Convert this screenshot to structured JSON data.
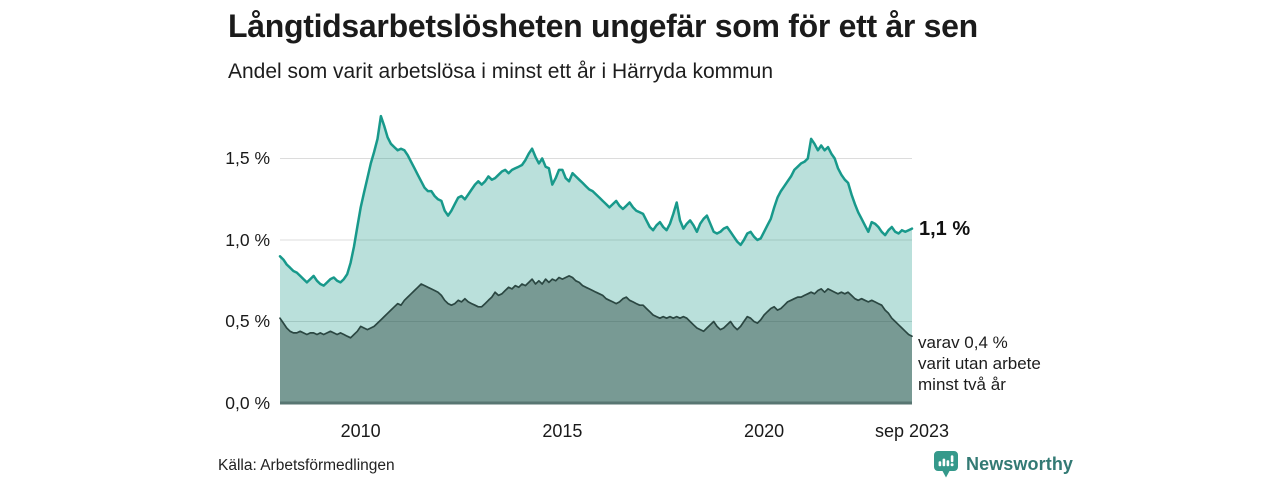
{
  "header": {
    "title": "Långtidsarbetslösheten ungefär som för ett år sen",
    "subtitle": "Andel som varit arbetslösa i minst ett år i Härryda kommun"
  },
  "annotations": {
    "latest_value": "1,1 %",
    "note_lines": [
      "varav 0,4 %",
      "varit utan arbete",
      "minst två år"
    ]
  },
  "footer": {
    "source": "Källa: Arbetsförmedlingen",
    "brand_name": "Newsworthy",
    "brand_icon_color": "#35998b",
    "brand_text_color": "#337a74"
  },
  "chart_data": {
    "type": "area",
    "title": "Långtidsarbetslösheten ungefär som för ett år sen",
    "subtitle": "Andel som varit arbetslösa i minst ett år i Härryda kommun",
    "unit": "%",
    "frequency": "monthly",
    "x_start": "2008-01",
    "x_end": "2023-09",
    "ylim": [
      0,
      1.8
    ],
    "grid": true,
    "grid_color": "#dcdcdc",
    "axis_color": "#587672",
    "yticks": [
      {
        "value": 1.5,
        "label": "1,5 %"
      },
      {
        "value": 1.0,
        "label": "1,0 %"
      },
      {
        "value": 0.5,
        "label": "0,5 %"
      },
      {
        "value": 0.0,
        "label": "0,0 %"
      }
    ],
    "xticks": [
      {
        "t": 2010,
        "label": "2010"
      },
      {
        "t": 2015,
        "label": "2015"
      },
      {
        "t": 2020,
        "label": "2020"
      },
      {
        "t": 2023.6667,
        "label": "sep 2023"
      }
    ],
    "series": [
      {
        "name": "Andel arbetslösa minst ett år",
        "end_label": "1,1 %",
        "end_value": 1.1,
        "line_color": "#18998b",
        "fill_color": "rgba(26,153,137,0.30)",
        "line_width": 2.5,
        "values": [
          0.9,
          0.88,
          0.85,
          0.83,
          0.81,
          0.8,
          0.78,
          0.76,
          0.74,
          0.76,
          0.78,
          0.75,
          0.73,
          0.72,
          0.74,
          0.76,
          0.77,
          0.75,
          0.74,
          0.76,
          0.79,
          0.86,
          0.96,
          1.08,
          1.2,
          1.29,
          1.38,
          1.47,
          1.54,
          1.62,
          1.76,
          1.7,
          1.63,
          1.59,
          1.57,
          1.55,
          1.56,
          1.55,
          1.52,
          1.48,
          1.44,
          1.4,
          1.36,
          1.32,
          1.3,
          1.3,
          1.27,
          1.25,
          1.24,
          1.18,
          1.15,
          1.18,
          1.22,
          1.26,
          1.27,
          1.25,
          1.28,
          1.31,
          1.34,
          1.36,
          1.34,
          1.36,
          1.39,
          1.37,
          1.38,
          1.4,
          1.42,
          1.43,
          1.41,
          1.43,
          1.44,
          1.45,
          1.46,
          1.49,
          1.53,
          1.56,
          1.51,
          1.47,
          1.5,
          1.45,
          1.44,
          1.34,
          1.38,
          1.43,
          1.43,
          1.38,
          1.36,
          1.41,
          1.39,
          1.37,
          1.35,
          1.33,
          1.31,
          1.3,
          1.28,
          1.26,
          1.24,
          1.22,
          1.2,
          1.22,
          1.24,
          1.21,
          1.19,
          1.21,
          1.23,
          1.2,
          1.18,
          1.17,
          1.16,
          1.12,
          1.08,
          1.06,
          1.09,
          1.11,
          1.08,
          1.06,
          1.1,
          1.16,
          1.23,
          1.12,
          1.07,
          1.1,
          1.12,
          1.09,
          1.05,
          1.1,
          1.13,
          1.15,
          1.1,
          1.05,
          1.04,
          1.05,
          1.07,
          1.08,
          1.05,
          1.02,
          0.99,
          0.97,
          1.0,
          1.04,
          1.05,
          1.02,
          1.0,
          1.01,
          1.05,
          1.09,
          1.13,
          1.2,
          1.26,
          1.3,
          1.33,
          1.36,
          1.39,
          1.43,
          1.45,
          1.47,
          1.48,
          1.5,
          1.62,
          1.59,
          1.55,
          1.58,
          1.55,
          1.57,
          1.53,
          1.5,
          1.44,
          1.4,
          1.37,
          1.35,
          1.28,
          1.22,
          1.17,
          1.13,
          1.09,
          1.05,
          1.11,
          1.1,
          1.08,
          1.05,
          1.03,
          1.06,
          1.08,
          1.05,
          1.04,
          1.06,
          1.05,
          1.06,
          1.07
        ]
      },
      {
        "name": "varav arbetslösa minst två år",
        "end_label": "varav 0,4 % varit utan arbete minst två år",
        "end_value": 0.4,
        "line_color": "#2b4742",
        "fill_color": "rgba(39,68,63,0.45)",
        "line_width": 1.7,
        "values": [
          0.52,
          0.49,
          0.46,
          0.44,
          0.43,
          0.43,
          0.44,
          0.43,
          0.42,
          0.43,
          0.43,
          0.42,
          0.43,
          0.42,
          0.43,
          0.44,
          0.43,
          0.42,
          0.43,
          0.42,
          0.41,
          0.4,
          0.42,
          0.44,
          0.47,
          0.46,
          0.45,
          0.46,
          0.47,
          0.49,
          0.51,
          0.53,
          0.55,
          0.57,
          0.59,
          0.61,
          0.6,
          0.63,
          0.65,
          0.67,
          0.69,
          0.71,
          0.73,
          0.72,
          0.71,
          0.7,
          0.69,
          0.68,
          0.66,
          0.63,
          0.61,
          0.6,
          0.61,
          0.63,
          0.62,
          0.64,
          0.62,
          0.61,
          0.6,
          0.59,
          0.59,
          0.61,
          0.63,
          0.65,
          0.68,
          0.66,
          0.67,
          0.69,
          0.71,
          0.7,
          0.72,
          0.71,
          0.73,
          0.72,
          0.74,
          0.76,
          0.73,
          0.75,
          0.73,
          0.76,
          0.74,
          0.76,
          0.75,
          0.77,
          0.76,
          0.77,
          0.78,
          0.77,
          0.75,
          0.74,
          0.72,
          0.71,
          0.7,
          0.69,
          0.68,
          0.67,
          0.66,
          0.64,
          0.63,
          0.62,
          0.61,
          0.62,
          0.64,
          0.65,
          0.63,
          0.62,
          0.61,
          0.6,
          0.6,
          0.58,
          0.56,
          0.54,
          0.53,
          0.52,
          0.53,
          0.52,
          0.53,
          0.52,
          0.53,
          0.52,
          0.53,
          0.52,
          0.5,
          0.48,
          0.46,
          0.45,
          0.44,
          0.46,
          0.48,
          0.5,
          0.47,
          0.45,
          0.46,
          0.48,
          0.5,
          0.47,
          0.45,
          0.47,
          0.5,
          0.53,
          0.52,
          0.5,
          0.49,
          0.51,
          0.54,
          0.56,
          0.58,
          0.59,
          0.57,
          0.58,
          0.6,
          0.62,
          0.63,
          0.64,
          0.65,
          0.65,
          0.66,
          0.67,
          0.68,
          0.67,
          0.69,
          0.7,
          0.68,
          0.7,
          0.69,
          0.68,
          0.67,
          0.68,
          0.67,
          0.68,
          0.66,
          0.64,
          0.63,
          0.64,
          0.63,
          0.62,
          0.63,
          0.62,
          0.61,
          0.6,
          0.57,
          0.55,
          0.52,
          0.5,
          0.48,
          0.46,
          0.44,
          0.42,
          0.41
        ]
      }
    ]
  }
}
